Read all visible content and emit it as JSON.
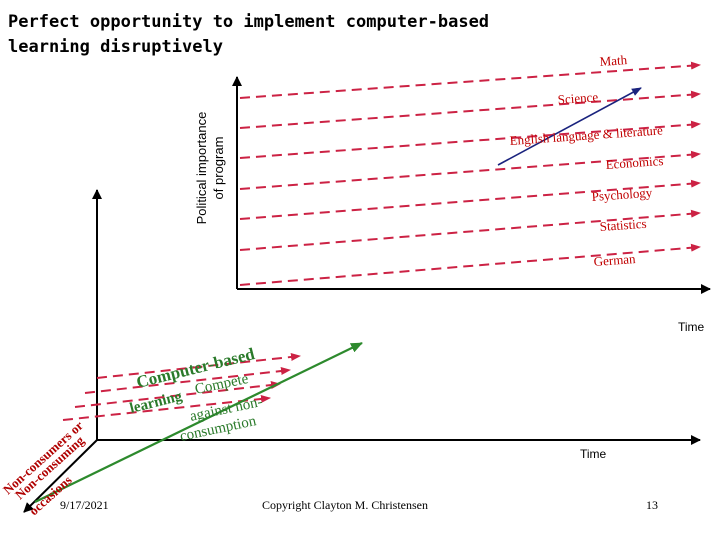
{
  "title": "Perfect opportunity to implement computer-based learning disruptively",
  "y_axis_label_line1": "Political importance",
  "y_axis_label_line2": "of program",
  "time_label_upper": "Time",
  "time_label_lower": "Time",
  "programs": [
    "Math",
    "Science",
    "English language & literature",
    "Economics",
    "Psychology",
    "Statistics",
    "German"
  ],
  "disruptive_label_line1": "Computer-based",
  "disruptive_label_line2": "learning",
  "compete_label_line1": "Compete",
  "compete_label_line2": "against non-",
  "compete_label_line3": "consumption",
  "depth_axis_line1": "Non-consumers or",
  "depth_axis_line2": "Non-consuming",
  "depth_axis_line3": "occasions",
  "footer": {
    "date": "9/17/2021",
    "copyright": "Copyright Clayton M. Christensen",
    "page": "13"
  },
  "colors": {
    "dashed_arrow": "#cc2244",
    "disruptive_arrow": "#2d8a2d",
    "program_label": "#c00000",
    "axis": "#000000",
    "depth_text": "#b00000",
    "green_text": "#2a7a2a"
  }
}
